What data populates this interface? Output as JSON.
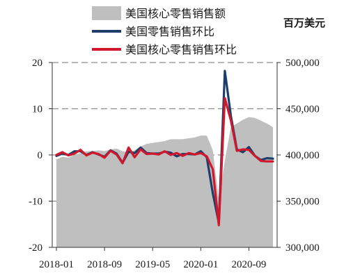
{
  "chart_data": {
    "type": "line",
    "right_axis_unit": "百万美元",
    "legend": [
      {
        "label": "美国核心零售销售额",
        "kind": "area",
        "color": "#bfbfbf"
      },
      {
        "label": "美国零售销售环比",
        "kind": "line",
        "color": "#1f3d6b"
      },
      {
        "label": "美国核心零售销售环比",
        "kind": "line",
        "color": "#d1172b"
      }
    ],
    "x_tick_labels": [
      "2018-01",
      "2018-09",
      "2019-05",
      "2020-01",
      "2020-09"
    ],
    "x": [
      "2018-01",
      "2018-02",
      "2018-03",
      "2018-04",
      "2018-05",
      "2018-06",
      "2018-07",
      "2018-08",
      "2018-09",
      "2018-10",
      "2018-11",
      "2018-12",
      "2019-01",
      "2019-02",
      "2019-03",
      "2019-04",
      "2019-05",
      "2019-06",
      "2019-07",
      "2019-08",
      "2019-09",
      "2019-10",
      "2019-11",
      "2019-12",
      "2020-01",
      "2020-02",
      "2020-03",
      "2020-04",
      "2020-05",
      "2020-06",
      "2020-07",
      "2020-08",
      "2020-09",
      "2020-10",
      "2020-11",
      "2020-12",
      "2021-01"
    ],
    "left_axis": {
      "ylim": [
        -20,
        20
      ],
      "ticks": [
        -20,
        -10,
        0,
        10,
        20
      ]
    },
    "right_axis": {
      "ylim": [
        300000,
        500000
      ],
      "tick_labels": [
        "300,000",
        "350,000",
        "400,000",
        "450,000",
        "500,000"
      ],
      "ticks": [
        300000,
        350000,
        400000,
        450000,
        500000
      ]
    },
    "grid": "horizontal dashed",
    "legend_position": "top",
    "series": [
      {
        "name": "美国核心零售销售额",
        "type": "area",
        "axis": "right",
        "values": [
          395000,
          398000,
          397000,
          400000,
          402000,
          404000,
          404000,
          405000,
          404000,
          406000,
          407000,
          404000,
          403000,
          405000,
          409000,
          412000,
          413000,
          414000,
          415000,
          417000,
          417000,
          417000,
          418000,
          419000,
          421000,
          421000,
          405000,
          352000,
          394000,
          430000,
          434000,
          438000,
          441000,
          440000,
          437000,
          434000,
          430000
        ]
      },
      {
        "name": "美国零售销售环比",
        "type": "line",
        "axis": "left",
        "values": [
          -0.2,
          0.3,
          0.0,
          0.8,
          0.8,
          0.0,
          0.6,
          0.1,
          -0.4,
          1.0,
          0.3,
          -1.7,
          0.7,
          0.4,
          1.6,
          0.4,
          0.3,
          0.3,
          0.7,
          0.5,
          -0.3,
          0.2,
          0.2,
          0.1,
          0.8,
          -0.5,
          -8.3,
          -14.7,
          18.2,
          8.5,
          1.2,
          0.6,
          1.7,
          -0.2,
          -1.1,
          -0.7,
          -0.8
        ]
      },
      {
        "name": "美国核心零售销售环比",
        "type": "line",
        "axis": "left",
        "values": [
          0.0,
          0.6,
          -0.1,
          0.3,
          1.1,
          -0.1,
          0.5,
          0.2,
          -0.6,
          0.9,
          0.1,
          -1.8,
          1.6,
          -0.5,
          1.2,
          0.2,
          0.3,
          0.1,
          0.8,
          0.0,
          0.4,
          -0.2,
          0.4,
          0.1,
          0.4,
          -0.3,
          -3.1,
          -15.2,
          12.3,
          7.5,
          0.9,
          1.2,
          1.1,
          -0.2,
          -1.3,
          -1.4,
          -1.4
        ]
      }
    ]
  }
}
